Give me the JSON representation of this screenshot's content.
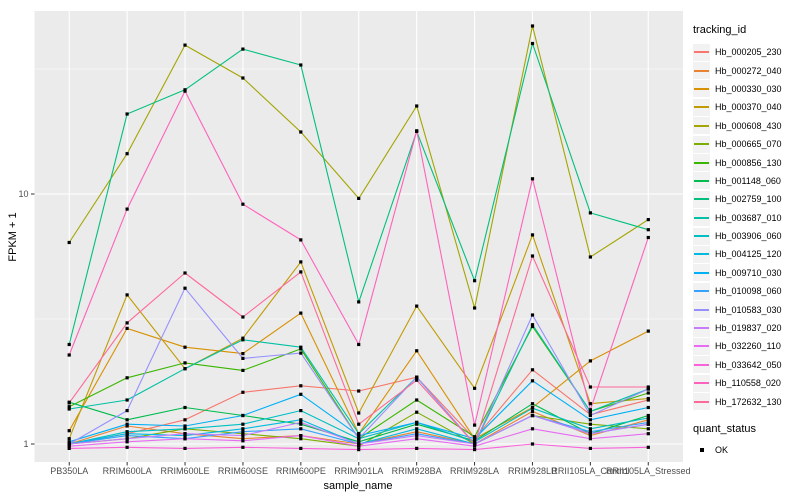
{
  "chart_data": {
    "type": "line",
    "title": "",
    "xlabel": "sample_name",
    "ylabel": "FPKM + 1",
    "y_scale": "log10",
    "ylim": [
      0.85,
      55
    ],
    "y_ticks": [
      "1",
      "10"
    ],
    "y_tick_values": [
      1,
      10
    ],
    "y_minor_values": [
      3.1623,
      31.623
    ],
    "grid": true,
    "legend_position": "right",
    "legend_title": "tracking_id",
    "panel_bg": "#EBEBEB",
    "grid_color": "#FFFFFF",
    "tick_label_color": "#4D4D4D",
    "marker_color": "#000000",
    "categories": [
      "PB350LA",
      "RRIM600LA",
      "RRIM600LE",
      "RRIM600SE",
      "RRIM600PE",
      "RRIM901LA",
      "RRIM928BA",
      "RRIM928LA",
      "RRIM928LB",
      "RRII105LA_Control",
      "RRII105LA_Stressed"
    ],
    "series": [
      {
        "name": "Hb_000205_230",
        "color": "#F8766D",
        "values": [
          1.0,
          1.1,
          1.25,
          1.61,
          1.71,
          1.63,
          1.85,
          1.05,
          1.98,
          1.31,
          1.5
        ]
      },
      {
        "name": "Hb_000272_040",
        "color": "#EA8331",
        "values": [
          1.0,
          1.18,
          1.1,
          1.05,
          1.08,
          1.0,
          1.12,
          1.0,
          1.35,
          1.08,
          1.25
        ]
      },
      {
        "name": "Hb_000330_030",
        "color": "#D89000",
        "values": [
          1.13,
          2.9,
          2.44,
          2.3,
          3.34,
          1.1,
          2.36,
          1.05,
          1.4,
          2.15,
          2.83
        ]
      },
      {
        "name": "Hb_000370_040",
        "color": "#C09B00",
        "values": [
          1.05,
          3.95,
          2.0,
          2.65,
          5.35,
          1.33,
          3.56,
          1.67,
          6.86,
          1.45,
          1.52
        ]
      },
      {
        "name": "Hb_000608_430",
        "color": "#A3A500",
        "values": [
          6.4,
          14.5,
          39.4,
          29.1,
          17.7,
          9.6,
          22.5,
          3.5,
          47.0,
          5.6,
          7.9
        ]
      },
      {
        "name": "Hb_000665_070",
        "color": "#7CAE00",
        "values": [
          1.0,
          1.05,
          1.15,
          1.1,
          1.05,
          0.98,
          1.34,
          1.0,
          1.3,
          1.2,
          1.15
        ]
      },
      {
        "name": "Hb_000856_130",
        "color": "#39B600",
        "values": [
          1.41,
          1.84,
          2.11,
          1.97,
          2.4,
          1.05,
          1.5,
          1.07,
          2.95,
          1.35,
          1.6
        ]
      },
      {
        "name": "Hb_001148_060",
        "color": "#00BB4E",
        "values": [
          1.47,
          1.25,
          1.4,
          1.3,
          1.2,
          1.02,
          1.2,
          1.03,
          1.45,
          1.1,
          1.3
        ]
      },
      {
        "name": "Hb_002759_100",
        "color": "#00BF7D",
        "values": [
          2.5,
          20.9,
          26.1,
          38.0,
          32.8,
          3.7,
          17.8,
          4.5,
          40.0,
          8.4,
          7.2
        ]
      },
      {
        "name": "Hb_003687_010",
        "color": "#00C1A3",
        "values": [
          1.38,
          1.5,
          2.0,
          2.61,
          2.44,
          1.1,
          1.85,
          1.0,
          3.0,
          1.35,
          1.66
        ]
      },
      {
        "name": "Hb_003906_060",
        "color": "#00BFC4",
        "values": [
          1.0,
          1.12,
          1.15,
          1.2,
          1.36,
          1.05,
          1.22,
          1.02,
          1.39,
          1.15,
          1.27
        ]
      },
      {
        "name": "Hb_004125_120",
        "color": "#00BAE0",
        "values": [
          1.0,
          1.1,
          1.08,
          1.15,
          1.25,
          1.0,
          1.15,
          1.0,
          1.3,
          1.1,
          1.2
        ]
      },
      {
        "name": "Hb_009710_030",
        "color": "#00B0F6",
        "values": [
          1.02,
          1.2,
          1.18,
          1.3,
          1.58,
          1.08,
          1.22,
          1.05,
          1.79,
          1.25,
          1.4
        ]
      },
      {
        "name": "Hb_010098_060",
        "color": "#35A2FF",
        "values": [
          1.0,
          1.08,
          1.05,
          1.12,
          1.15,
          1.0,
          1.1,
          1.0,
          1.3,
          1.12,
          1.22
        ]
      },
      {
        "name": "Hb_010583_030",
        "color": "#9590FF",
        "values": [
          1.0,
          1.36,
          4.2,
          2.2,
          2.31,
          1.05,
          1.85,
          1.0,
          3.28,
          1.3,
          1.66
        ]
      },
      {
        "name": "Hb_019837_020",
        "color": "#C77CFF",
        "values": [
          1.0,
          1.05,
          1.1,
          1.08,
          1.22,
          1.0,
          1.08,
          1.0,
          1.3,
          1.1,
          1.2
        ]
      },
      {
        "name": "Hb_032260_110",
        "color": "#E76BF3",
        "values": [
          0.98,
          1.02,
          1.05,
          1.03,
          1.08,
          0.98,
          1.05,
          0.98,
          1.15,
          1.05,
          1.1
        ]
      },
      {
        "name": "Hb_033642_050",
        "color": "#FA62DB",
        "values": [
          0.96,
          0.97,
          0.96,
          0.97,
          0.96,
          0.95,
          0.96,
          0.95,
          1.0,
          0.96,
          0.97
        ]
      },
      {
        "name": "Hb_110558_020",
        "color": "#FF62BC",
        "values": [
          2.27,
          8.7,
          25.8,
          9.1,
          6.55,
          2.5,
          17.9,
          1.19,
          11.5,
          1.37,
          6.7
        ]
      },
      {
        "name": "Hb_172632_130",
        "color": "#FF6A98",
        "values": [
          1.46,
          3.05,
          4.83,
          3.22,
          4.88,
          1.2,
          1.8,
          1.0,
          5.65,
          1.69,
          1.69
        ]
      }
    ],
    "legend2": {
      "title": "quant_status",
      "items": [
        {
          "label": "OK",
          "marker": "square",
          "color": "#000000"
        }
      ]
    }
  }
}
